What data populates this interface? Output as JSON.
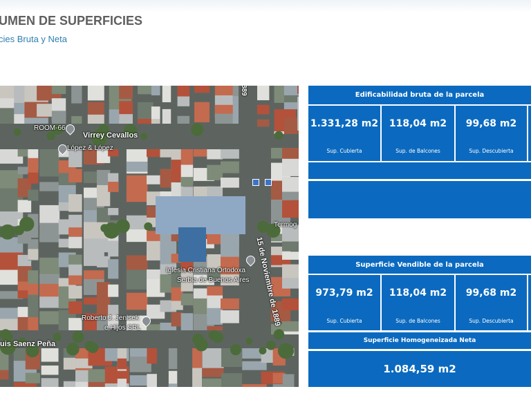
{
  "header": {
    "title": "UMEN DE SUPERFICIES",
    "subtitle": "cies Bruta y Neta"
  },
  "map": {
    "labels": [
      "ROOM-66",
      "López & López",
      "Iglesia Cristiana Ortodoxa",
      "Serbia de Buenos Aires",
      "Roberto J. Jenisek",
      "e Hijos SRL",
      "Termog"
    ],
    "streets": [
      "Virrey Cevallos",
      "15 de Noviembre de 1889",
      "uis Saenz Peña",
      "889"
    ]
  },
  "bruta": {
    "title": "Edificabilidad bruta de la parcela",
    "cells": [
      {
        "value": "1.331,28 m2",
        "label": "Sup. Cubierta"
      },
      {
        "value": "118,04 m2",
        "label": "Sup. de Balcones"
      },
      {
        "value": "99,68 m2",
        "label": "Sup. Descubierta"
      }
    ]
  },
  "vendible": {
    "title": "Superficie Vendible de la parcela",
    "cells": [
      {
        "value": "973,79 m2",
        "label": "Sup. Cubierta"
      },
      {
        "value": "118,04 m2",
        "label": "Sup. de Balcones"
      },
      {
        "value": "99,68 m2",
        "label": "Sup. Descubierta"
      }
    ],
    "homog_title": "Superficie Homogeneizada Neta",
    "homog_value": "1.084,59 m2"
  },
  "colors": {
    "panel": "#0b6abf",
    "title": "#5f5f5f",
    "subtitle": "#2f7fb0"
  }
}
